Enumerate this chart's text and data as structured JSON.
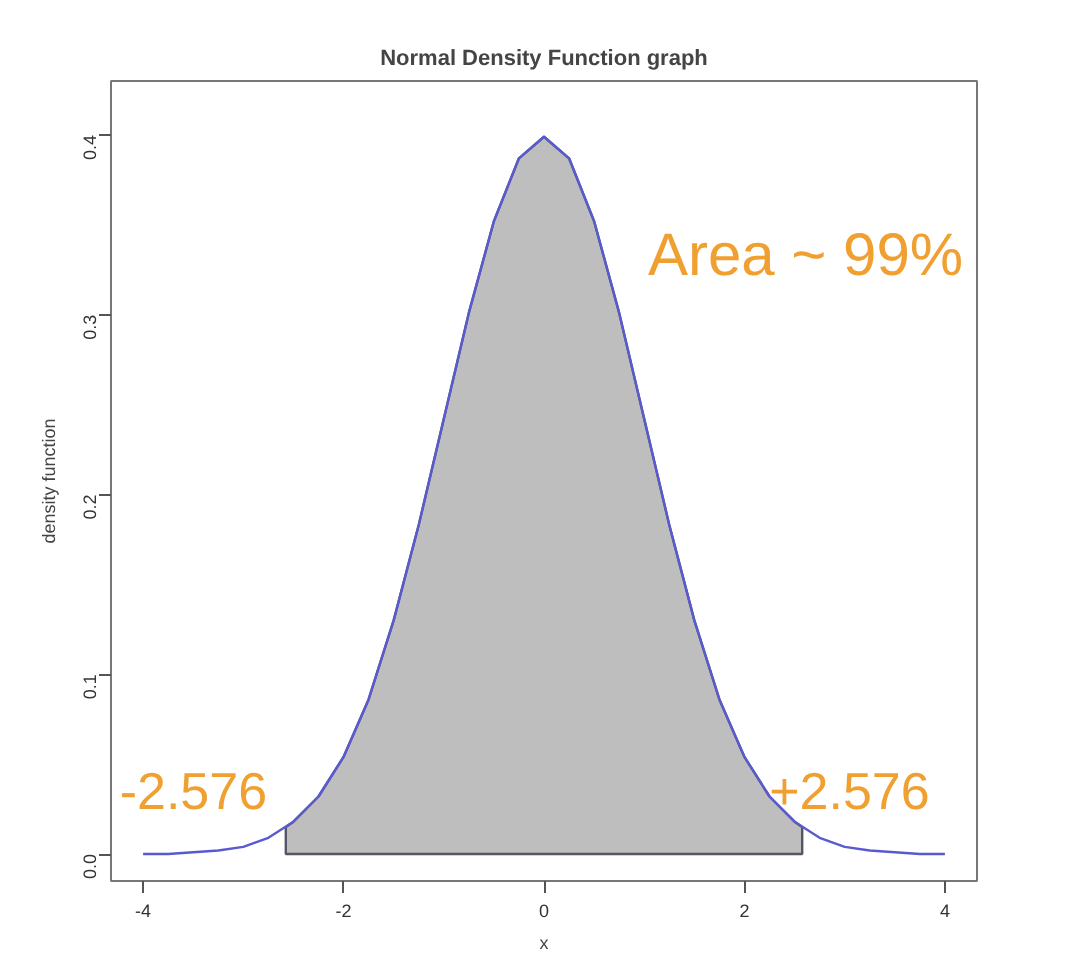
{
  "chart_data": {
    "type": "line",
    "title": "Normal Density Function graph",
    "xlabel": "x",
    "ylabel": "density function",
    "xlim": [
      -4.32,
      4.32
    ],
    "ylim": [
      -0.015,
      0.43
    ],
    "xticks": [
      -4,
      -2,
      0,
      2,
      4
    ],
    "yticks": [
      {
        "value": 0,
        "label": "0.0"
      },
      0.1,
      0.2,
      0.3,
      0.4
    ],
    "grid": false,
    "series": [
      {
        "type": "area",
        "color": "#bebebe",
        "x": [
          -2.576,
          -2.5,
          -2.25,
          -2,
          -1.75,
          -1.5,
          -1.25,
          -1,
          -0.75,
          -0.5,
          -0.25,
          0,
          0.25,
          0.5,
          0.75,
          1,
          1.25,
          1.5,
          1.75,
          2,
          2.25,
          2.5,
          2.576
        ],
        "values": [
          0.015,
          0.018,
          0.032,
          0.054,
          0.086,
          0.13,
          0.183,
          0.242,
          0.301,
          0.352,
          0.387,
          0.399,
          0.387,
          0.352,
          0.301,
          0.242,
          0.183,
          0.13,
          0.086,
          0.054,
          0.032,
          0.018,
          0.015
        ]
      },
      {
        "color": "#5a5ad0",
        "x": [
          -4,
          -3.75,
          -3.5,
          -3.25,
          -3,
          -2.75,
          -2.5,
          -2.25,
          -2,
          -1.75,
          -1.5,
          -1.25,
          -1,
          -0.75,
          -0.5,
          -0.25,
          0,
          0.25,
          0.5,
          0.75,
          1,
          1.25,
          1.5,
          1.75,
          2,
          2.25,
          2.5,
          2.75,
          3,
          3.25,
          3.5,
          3.75,
          4
        ],
        "values": [
          0,
          0,
          0.001,
          0.002,
          0.004,
          0.009,
          0.018,
          0.032,
          0.054,
          0.086,
          0.13,
          0.183,
          0.242,
          0.301,
          0.352,
          0.387,
          0.399,
          0.387,
          0.352,
          0.301,
          0.242,
          0.183,
          0.13,
          0.086,
          0.054,
          0.032,
          0.018,
          0.009,
          0.004,
          0.002,
          0.001,
          0,
          0
        ]
      }
    ],
    "annotations": [
      "Area ~ 99%",
      "-2.576",
      "+2.576"
    ]
  }
}
